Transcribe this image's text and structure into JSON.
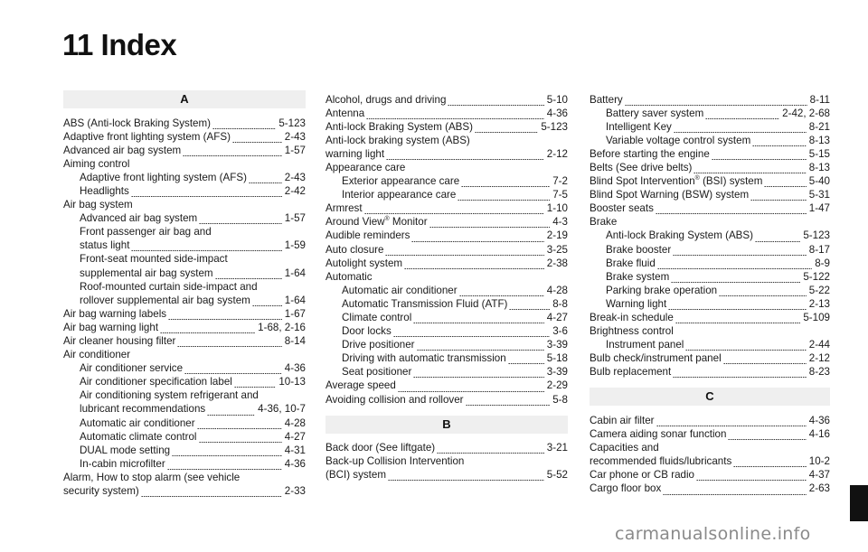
{
  "page_title": "11 Index",
  "watermark": "carmanualsonline.info",
  "columns": [
    {
      "blocks": [
        {
          "type": "header",
          "letter": "A"
        },
        {
          "type": "entries",
          "items": [
            {
              "text": "ABS (Anti-lock Braking System)",
              "page": "5-123",
              "indent": false
            },
            {
              "text": "Adaptive front lighting system (AFS)",
              "page": "2-43",
              "indent": false
            },
            {
              "text": "Advanced air bag system",
              "page": "1-57",
              "indent": false
            },
            {
              "text": "Aiming control",
              "page": "",
              "indent": false
            },
            {
              "text": "Adaptive front lighting system (AFS)",
              "page": "2-43",
              "indent": true
            },
            {
              "text": "Headlights",
              "page": "2-42",
              "indent": true
            },
            {
              "text": "Air bag system",
              "page": "",
              "indent": false
            },
            {
              "text": "Advanced air bag system",
              "page": "1-57",
              "indent": true
            },
            {
              "text": "Front passenger air bag and",
              "page": "",
              "indent": true
            },
            {
              "text": "status light",
              "page": "1-59",
              "indent": true
            },
            {
              "text": "Front-seat mounted side-impact",
              "page": "",
              "indent": true
            },
            {
              "text": "supplemental air bag system",
              "page": "1-64",
              "indent": true
            },
            {
              "text": "Roof-mounted curtain side-impact and",
              "page": "",
              "indent": true
            },
            {
              "text": "rollover supplemental air bag system",
              "page": "1-64",
              "indent": true
            },
            {
              "text": "Air bag warning labels",
              "page": "1-67",
              "indent": false
            },
            {
              "text": "Air bag warning light",
              "page": "1-68, 2-16",
              "indent": false
            },
            {
              "text": "Air cleaner housing filter",
              "page": "8-14",
              "indent": false
            },
            {
              "text": "Air conditioner",
              "page": "",
              "indent": false
            },
            {
              "text": "Air conditioner service",
              "page": "4-36",
              "indent": true
            },
            {
              "text": "Air conditioner specification label",
              "page": "10-13",
              "indent": true
            },
            {
              "text": "Air conditioning system refrigerant and",
              "page": "",
              "indent": true
            },
            {
              "text": "lubricant recommendations",
              "page": "4-36, 10-7",
              "indent": true
            },
            {
              "text": "Automatic air conditioner",
              "page": "4-28",
              "indent": true
            },
            {
              "text": "Automatic climate control",
              "page": "4-27",
              "indent": true
            },
            {
              "text": "DUAL mode setting",
              "page": "4-31",
              "indent": true
            },
            {
              "text": "In-cabin microfilter",
              "page": "4-36",
              "indent": true
            },
            {
              "text": "Alarm, How to stop alarm (see vehicle",
              "page": "",
              "indent": false
            },
            {
              "text": "security system)",
              "page": "2-33",
              "indent": false
            }
          ]
        }
      ]
    },
    {
      "blocks": [
        {
          "type": "entries",
          "items": [
            {
              "text": "Alcohol, drugs and driving",
              "page": "5-10",
              "indent": false
            },
            {
              "text": "Antenna",
              "page": "4-36",
              "indent": false
            },
            {
              "text": "Anti-lock Braking System (ABS)",
              "page": "5-123",
              "indent": false
            },
            {
              "text": "Anti-lock braking system (ABS)",
              "page": "",
              "indent": false
            },
            {
              "text": "warning light",
              "page": "2-12",
              "indent": false
            },
            {
              "text": "Appearance care",
              "page": "",
              "indent": false
            },
            {
              "text": "Exterior appearance care",
              "page": "7-2",
              "indent": true
            },
            {
              "text": "Interior appearance care",
              "page": "7-5",
              "indent": true
            },
            {
              "text": "Armrest",
              "page": "1-10",
              "indent": false
            },
            {
              "text": "Around View",
              "sup": "®",
              "after": " Monitor",
              "page": "4-3",
              "indent": false
            },
            {
              "text": "Audible reminders",
              "page": "2-19",
              "indent": false
            },
            {
              "text": "Auto closure",
              "page": "3-25",
              "indent": false
            },
            {
              "text": "Autolight system",
              "page": "2-38",
              "indent": false
            },
            {
              "text": "Automatic",
              "page": "",
              "indent": false
            },
            {
              "text": "Automatic air conditioner",
              "page": "4-28",
              "indent": true
            },
            {
              "text": "Automatic Transmission Fluid (ATF)",
              "page": "8-8",
              "indent": true
            },
            {
              "text": "Climate control",
              "page": "4-27",
              "indent": true
            },
            {
              "text": "Door locks",
              "page": "3-6",
              "indent": true
            },
            {
              "text": "Drive positioner",
              "page": "3-39",
              "indent": true
            },
            {
              "text": "Driving with automatic transmission",
              "page": "5-18",
              "indent": true
            },
            {
              "text": "Seat positioner",
              "page": "3-39",
              "indent": true
            },
            {
              "text": "Average speed",
              "page": "2-29",
              "indent": false
            },
            {
              "text": "Avoiding collision and rollover",
              "page": "5-8",
              "indent": false
            }
          ]
        },
        {
          "type": "header",
          "letter": "B"
        },
        {
          "type": "entries",
          "items": [
            {
              "text": "Back door (See liftgate)",
              "page": "3-21",
              "indent": false
            },
            {
              "text": "Back-up Collision Intervention",
              "page": "",
              "indent": false
            },
            {
              "text": "(BCI) system",
              "page": "5-52",
              "indent": false
            }
          ]
        }
      ]
    },
    {
      "blocks": [
        {
          "type": "entries",
          "items": [
            {
              "text": "Battery",
              "page": "8-11",
              "indent": false
            },
            {
              "text": "Battery saver system",
              "page": "2-42, 2-68",
              "indent": true
            },
            {
              "text": "Intelligent Key",
              "page": "8-21",
              "indent": true
            },
            {
              "text": "Variable voltage control system",
              "page": "8-13",
              "indent": true
            },
            {
              "text": "Before starting the engine",
              "page": "5-15",
              "indent": false
            },
            {
              "text": "Belts (See drive belts)",
              "page": "8-13",
              "indent": false
            },
            {
              "text": "Blind Spot Intervention",
              "sup": "®",
              "after": " (BSI) system",
              "page": "5-40",
              "indent": false
            },
            {
              "text": "Blind Spot Warning (BSW) system",
              "page": "5-31",
              "indent": false
            },
            {
              "text": "Booster seats",
              "page": "1-47",
              "indent": false
            },
            {
              "text": "Brake",
              "page": "",
              "indent": false
            },
            {
              "text": "Anti-lock Braking System (ABS)",
              "page": "5-123",
              "indent": true
            },
            {
              "text": "Brake booster",
              "page": "8-17",
              "indent": true
            },
            {
              "text": "Brake fluid",
              "page": "8-9",
              "indent": true
            },
            {
              "text": "Brake system",
              "page": "5-122",
              "indent": true
            },
            {
              "text": "Parking brake operation",
              "page": "5-22",
              "indent": true
            },
            {
              "text": "Warning light",
              "page": "2-13",
              "indent": true
            },
            {
              "text": "Break-in schedule",
              "page": "5-109",
              "indent": false
            },
            {
              "text": "Brightness control",
              "page": "",
              "indent": false
            },
            {
              "text": "Instrument panel",
              "page": "2-44",
              "indent": true
            },
            {
              "text": "Bulb check/instrument panel",
              "page": "2-12",
              "indent": false
            },
            {
              "text": "Bulb replacement",
              "page": "8-23",
              "indent": false
            }
          ]
        },
        {
          "type": "header",
          "letter": "C"
        },
        {
          "type": "entries",
          "items": [
            {
              "text": "Cabin air filter",
              "page": "4-36",
              "indent": false
            },
            {
              "text": "Camera aiding sonar function",
              "page": "4-16",
              "indent": false
            },
            {
              "text": "Capacities and",
              "page": "",
              "indent": false
            },
            {
              "text": "recommended fluids/lubricants",
              "page": "10-2",
              "indent": false
            },
            {
              "text": "Car phone or CB radio",
              "page": "4-37",
              "indent": false
            },
            {
              "text": "Cargo floor box",
              "page": "2-63",
              "indent": false
            }
          ]
        }
      ]
    }
  ]
}
